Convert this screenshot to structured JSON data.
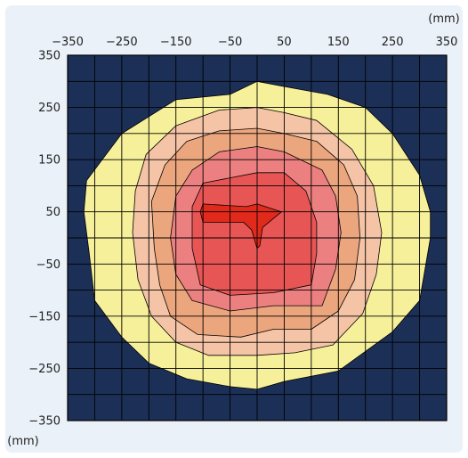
{
  "chart_data": {
    "type": "heatmap",
    "subtype": "contour-map",
    "x_unit": "(mm)",
    "y_unit": "(mm)",
    "x_ticks": [
      "−350",
      "−250",
      "−150",
      "−50",
      "50",
      "150",
      "250",
      "350"
    ],
    "y_ticks": [
      "350",
      "250",
      "150",
      "50",
      "−50",
      "−150",
      "−250",
      "−350"
    ],
    "xlim": [
      -350,
      350
    ],
    "ylim": [
      -350,
      350
    ],
    "grid": true,
    "grid_spacing_mm": 50,
    "colors": {
      "background": "#1c2f57",
      "grid": "#000000",
      "levels": [
        "#f7f09a",
        "#f5c4a6",
        "#eca67e",
        "#ec8080",
        "#e85555",
        "#e22a1c"
      ]
    },
    "levels": [
      {
        "level": 1,
        "color": "#f7f09a",
        "contour_mm": [
          [
            0,
            300
          ],
          [
            -50,
            275
          ],
          [
            -150,
            265
          ],
          [
            -250,
            200
          ],
          [
            -315,
            110
          ],
          [
            -320,
            50
          ],
          [
            -310,
            -30
          ],
          [
            -300,
            -120
          ],
          [
            -250,
            -190
          ],
          [
            -200,
            -240
          ],
          [
            -130,
            -270
          ],
          [
            -50,
            -285
          ],
          [
            0,
            -290
          ],
          [
            50,
            -275
          ],
          [
            150,
            -255
          ],
          [
            250,
            -180
          ],
          [
            300,
            -120
          ],
          [
            310,
            -60
          ],
          [
            320,
            0
          ],
          [
            320,
            50
          ],
          [
            300,
            120
          ],
          [
            250,
            200
          ],
          [
            200,
            250
          ],
          [
            130,
            275
          ],
          [
            50,
            290
          ]
        ]
      },
      {
        "level": 2,
        "color": "#f5c4a6",
        "contour_mm": [
          [
            0,
            250
          ],
          [
            -70,
            245
          ],
          [
            -150,
            215
          ],
          [
            -205,
            160
          ],
          [
            -225,
            90
          ],
          [
            -230,
            10
          ],
          [
            -220,
            -80
          ],
          [
            -195,
            -150
          ],
          [
            -150,
            -200
          ],
          [
            -90,
            -225
          ],
          [
            0,
            -225
          ],
          [
            70,
            -220
          ],
          [
            140,
            -205
          ],
          [
            195,
            -145
          ],
          [
            220,
            -70
          ],
          [
            230,
            10
          ],
          [
            215,
            100
          ],
          [
            175,
            170
          ],
          [
            110,
            225
          ],
          [
            50,
            240
          ]
        ]
      },
      {
        "level": 3,
        "color": "#eca67e",
        "contour_mm": [
          [
            0,
            210
          ],
          [
            -70,
            205
          ],
          [
            -130,
            185
          ],
          [
            -170,
            140
          ],
          [
            -195,
            70
          ],
          [
            -190,
            -20
          ],
          [
            -180,
            -90
          ],
          [
            -160,
            -150
          ],
          [
            -110,
            -185
          ],
          [
            -30,
            -190
          ],
          [
            30,
            -175
          ],
          [
            100,
            -175
          ],
          [
            150,
            -140
          ],
          [
            180,
            -80
          ],
          [
            190,
            0
          ],
          [
            185,
            80
          ],
          [
            160,
            140
          ],
          [
            110,
            185
          ],
          [
            50,
            200
          ]
        ]
      },
      {
        "level": 4,
        "color": "#ec8080",
        "contour_mm": [
          [
            0,
            175
          ],
          [
            -70,
            165
          ],
          [
            -120,
            130
          ],
          [
            -150,
            80
          ],
          [
            -160,
            0
          ],
          [
            -150,
            -70
          ],
          [
            -120,
            -120
          ],
          [
            -50,
            -140
          ],
          [
            30,
            -130
          ],
          [
            120,
            -130
          ],
          [
            145,
            -60
          ],
          [
            155,
            10
          ],
          [
            145,
            80
          ],
          [
            120,
            130
          ],
          [
            50,
            165
          ]
        ]
      },
      {
        "level": 5,
        "color": "#e85555",
        "contour_mm": [
          [
            -50,
            115
          ],
          [
            -100,
            105
          ],
          [
            -120,
            60
          ],
          [
            -120,
            -20
          ],
          [
            -105,
            -90
          ],
          [
            -50,
            -110
          ],
          [
            30,
            -105
          ],
          [
            100,
            -90
          ],
          [
            110,
            -30
          ],
          [
            110,
            30
          ],
          [
            90,
            90
          ],
          [
            50,
            125
          ],
          [
            0,
            125
          ]
        ]
      },
      {
        "level": 6,
        "color": "#e22a1c",
        "contour_mm": [
          [
            -105,
            50
          ],
          [
            -100,
            65
          ],
          [
            -20,
            60
          ],
          [
            0,
            65
          ],
          [
            45,
            50
          ],
          [
            10,
            20
          ],
          [
            5,
            -15
          ],
          [
            0,
            -20
          ],
          [
            -10,
            15
          ],
          [
            -25,
            30
          ],
          [
            -100,
            30
          ]
        ]
      }
    ]
  }
}
